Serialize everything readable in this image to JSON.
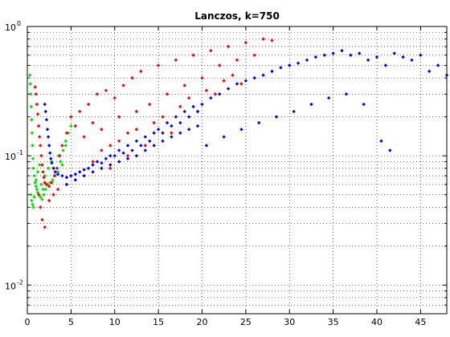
{
  "chart_data": {
    "type": "scatter",
    "title": "Lanczos, k=750",
    "xlabel": "",
    "ylabel": "",
    "xlim": [
      0,
      48
    ],
    "ylim": [
      0.006,
      1
    ],
    "yscale": "log",
    "grid": true,
    "grid_style": "dotted",
    "marker": "dot",
    "x_ticks": [
      0,
      5,
      10,
      15,
      20,
      25,
      30,
      35,
      40,
      45
    ],
    "y_ticks": [
      {
        "value": 0.01,
        "base": "10",
        "exp": "-2"
      },
      {
        "value": 0.1,
        "base": "10",
        "exp": "-1"
      },
      {
        "value": 1,
        "base": "10",
        "exp": "0"
      }
    ],
    "colors": {
      "green": "#00e000",
      "red": "#ff0000",
      "blue": "#0000ff"
    },
    "series": [
      {
        "color": "#00e000",
        "x": [
          0.3,
          0.35,
          0.4,
          0.45,
          0.5,
          0.55,
          0.6,
          0.65,
          0.7,
          0.8,
          0.9,
          1.0,
          1.1,
          1.2,
          1.3,
          1.5,
          1.7,
          1.9,
          2.1,
          2.3,
          2.6,
          2.9,
          3.2,
          3.5,
          3.8,
          4.1,
          4.4,
          4.7,
          5.0,
          0.4,
          0.5,
          0.6,
          0.7,
          0.8,
          1.0,
          1.2,
          1.4,
          1.6,
          1.8,
          2.0,
          2.4,
          2.8,
          3.2,
          3.6,
          4.0,
          4.4
        ],
        "y": [
          0.42,
          0.36,
          0.3,
          0.24,
          0.19,
          0.15,
          0.12,
          0.095,
          0.08,
          0.07,
          0.062,
          0.058,
          0.055,
          0.052,
          0.05,
          0.048,
          0.046,
          0.05,
          0.055,
          0.06,
          0.062,
          0.065,
          0.07,
          0.075,
          0.09,
          0.11,
          0.13,
          0.15,
          0.17,
          0.05,
          0.045,
          0.042,
          0.04,
          0.048,
          0.065,
          0.075,
          0.085,
          0.06,
          0.055,
          0.07,
          0.08,
          0.09,
          0.075,
          0.1,
          0.085,
          0.12
        ]
      },
      {
        "color": "#ff0000",
        "x": [
          0.9,
          1.0,
          1.1,
          1.2,
          1.3,
          1.4,
          1.5,
          1.6,
          1.7,
          1.8,
          1.9,
          2.0,
          2.2,
          2.5,
          2.8,
          3.1,
          3.4,
          3.7,
          4.0,
          4.5,
          5.0,
          5.5,
          6.0,
          6.5,
          7.0,
          7.5,
          8.0,
          8.5,
          9.0,
          9.5,
          10,
          10.5,
          11,
          11.5,
          12,
          12.5,
          13,
          14,
          15,
          16,
          17,
          18,
          19,
          20,
          21,
          22,
          23,
          24,
          25,
          26,
          27,
          28,
          1.3,
          1.5,
          1.7,
          2.0,
          2.5,
          3.0,
          3.5,
          4.5,
          5.5,
          6.5,
          7.5,
          8.5,
          9.5,
          10.5,
          11.5,
          12.5,
          13.5,
          14.5,
          15.5,
          16.5,
          17.5,
          18.5,
          19.5,
          20.5,
          21.5,
          22.5,
          23.5,
          24.5
        ],
        "y": [
          0.34,
          0.3,
          0.25,
          0.21,
          0.17,
          0.14,
          0.12,
          0.1,
          0.085,
          0.075,
          0.068,
          0.062,
          0.06,
          0.058,
          0.062,
          0.07,
          0.08,
          0.1,
          0.12,
          0.15,
          0.2,
          0.17,
          0.22,
          0.14,
          0.25,
          0.18,
          0.3,
          0.16,
          0.32,
          0.12,
          0.28,
          0.2,
          0.35,
          0.15,
          0.4,
          0.22,
          0.45,
          0.25,
          0.5,
          0.3,
          0.55,
          0.35,
          0.6,
          0.4,
          0.65,
          0.5,
          0.7,
          0.55,
          0.75,
          0.6,
          0.8,
          0.78,
          0.05,
          0.04,
          0.032,
          0.028,
          0.045,
          0.05,
          0.055,
          0.06,
          0.065,
          0.07,
          0.09,
          0.11,
          0.08,
          0.13,
          0.1,
          0.16,
          0.12,
          0.18,
          0.2,
          0.15,
          0.24,
          0.28,
          0.22,
          0.32,
          0.3,
          0.38,
          0.42,
          0.36
        ]
      },
      {
        "color": "#0000ff",
        "x": [
          2.0,
          2.1,
          2.2,
          2.3,
          2.4,
          2.5,
          2.6,
          2.7,
          2.8,
          3.0,
          3.2,
          3.5,
          4.0,
          4.5,
          5.0,
          5.5,
          6.0,
          6.5,
          7.0,
          7.5,
          8.0,
          8.5,
          9.0,
          9.5,
          10,
          10.5,
          11,
          11.5,
          12,
          12.5,
          13,
          13.5,
          14,
          14.5,
          15,
          15.5,
          16,
          16.5,
          17,
          17.5,
          18,
          18.5,
          19,
          19.5,
          20,
          21,
          22,
          23,
          24,
          25,
          26,
          27,
          28,
          29,
          30,
          31,
          32,
          33,
          34,
          35,
          36,
          37,
          38,
          39,
          40,
          41,
          42,
          43,
          44,
          45,
          46,
          47,
          48,
          4.5,
          5.5,
          6.5,
          7.5,
          8.5,
          9.5,
          10.5,
          11.5,
          12.5,
          13.5,
          14.5,
          15.5,
          16.5,
          17.5,
          18.5,
          19.5,
          20.5,
          22.5,
          24.5,
          26.5,
          28.5,
          30.5,
          32.5,
          34.5,
          36.5,
          38.5,
          40.5,
          41.5
        ],
        "y": [
          0.25,
          0.22,
          0.19,
          0.16,
          0.14,
          0.12,
          0.105,
          0.095,
          0.088,
          0.08,
          0.075,
          0.072,
          0.07,
          0.068,
          0.07,
          0.072,
          0.075,
          0.078,
          0.08,
          0.085,
          0.09,
          0.088,
          0.095,
          0.1,
          0.1,
          0.11,
          0.105,
          0.12,
          0.11,
          0.13,
          0.12,
          0.14,
          0.13,
          0.15,
          0.16,
          0.15,
          0.18,
          0.17,
          0.2,
          0.18,
          0.22,
          0.2,
          0.24,
          0.22,
          0.25,
          0.28,
          0.3,
          0.33,
          0.36,
          0.38,
          0.4,
          0.42,
          0.45,
          0.48,
          0.5,
          0.52,
          0.55,
          0.58,
          0.6,
          0.62,
          0.65,
          0.6,
          0.62,
          0.55,
          0.58,
          0.5,
          0.62,
          0.58,
          0.55,
          0.6,
          0.45,
          0.5,
          0.42,
          0.06,
          0.065,
          0.07,
          0.075,
          0.08,
          0.085,
          0.09,
          0.095,
          0.1,
          0.11,
          0.12,
          0.13,
          0.14,
          0.15,
          0.16,
          0.17,
          0.12,
          0.14,
          0.16,
          0.18,
          0.2,
          0.22,
          0.25,
          0.28,
          0.3,
          0.25,
          0.13,
          0.11
        ]
      }
    ]
  }
}
